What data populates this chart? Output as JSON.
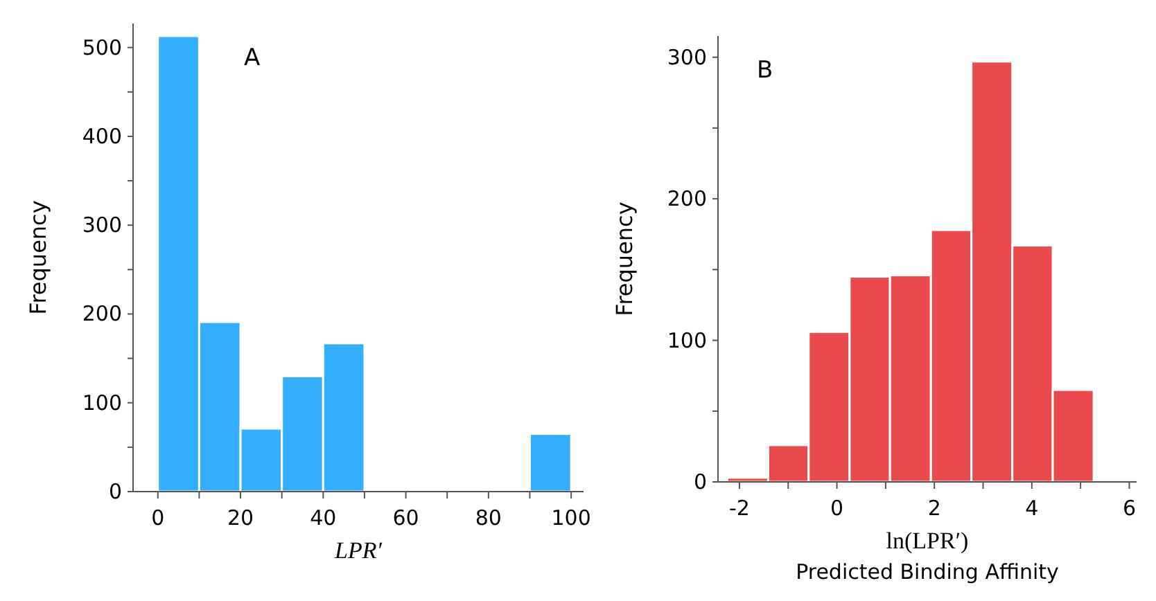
{
  "chart_data": [
    {
      "type": "histogram",
      "annotations": [
        "A"
      ],
      "xlabel": "LPR′",
      "ylabel": "Frequency",
      "color": "#33aeff",
      "bins": [
        0,
        10,
        20,
        30,
        40,
        50,
        60,
        70,
        80,
        90,
        100
      ],
      "values": [
        513,
        191,
        71,
        130,
        167,
        0,
        0,
        0,
        0,
        65
      ],
      "xlim": [
        -6,
        103
      ],
      "xticks": [
        0,
        {
          "value": 10,
          "label": null
        },
        20,
        {
          "value": 30,
          "label": null
        },
        40,
        {
          "value": 50,
          "label": null
        },
        60,
        {
          "value": 70,
          "label": null
        },
        80,
        {
          "value": 90,
          "label": null
        },
        100
      ],
      "ylim": [
        0,
        527
      ],
      "yticks": [
        0,
        {
          "value": 50,
          "label": null
        },
        100,
        {
          "value": 150,
          "label": null
        },
        200,
        {
          "value": 250,
          "label": null
        },
        300,
        {
          "value": 350,
          "label": null
        },
        400,
        {
          "value": 450,
          "label": null
        },
        500
      ]
    },
    {
      "type": "histogram",
      "annotations": [
        "B"
      ],
      "xlabel": "ln(LPR′)\nPredicted Binding Affinity",
      "ylabel": "Frequency",
      "color": "#e94a4c",
      "bins": [
        -2.25,
        -1.41,
        -0.58,
        0.26,
        1.09,
        1.93,
        2.76,
        3.6,
        4.43,
        5.27
      ],
      "values": [
        3,
        26,
        106,
        145,
        146,
        178,
        297,
        167,
        65
      ],
      "xlim": [
        -2.44,
        6.15
      ],
      "xticks": [
        -2,
        {
          "value": -1,
          "label": null
        },
        0,
        {
          "value": 1,
          "label": null
        },
        2,
        {
          "value": 3,
          "label": null
        },
        4,
        {
          "value": 5,
          "label": null
        },
        6
      ],
      "ylim": [
        0,
        315
      ],
      "yticks": [
        0,
        {
          "value": 50,
          "label": null
        },
        100,
        {
          "value": 150,
          "label": null
        },
        200,
        {
          "value": 250,
          "label": null
        },
        300
      ]
    }
  ]
}
